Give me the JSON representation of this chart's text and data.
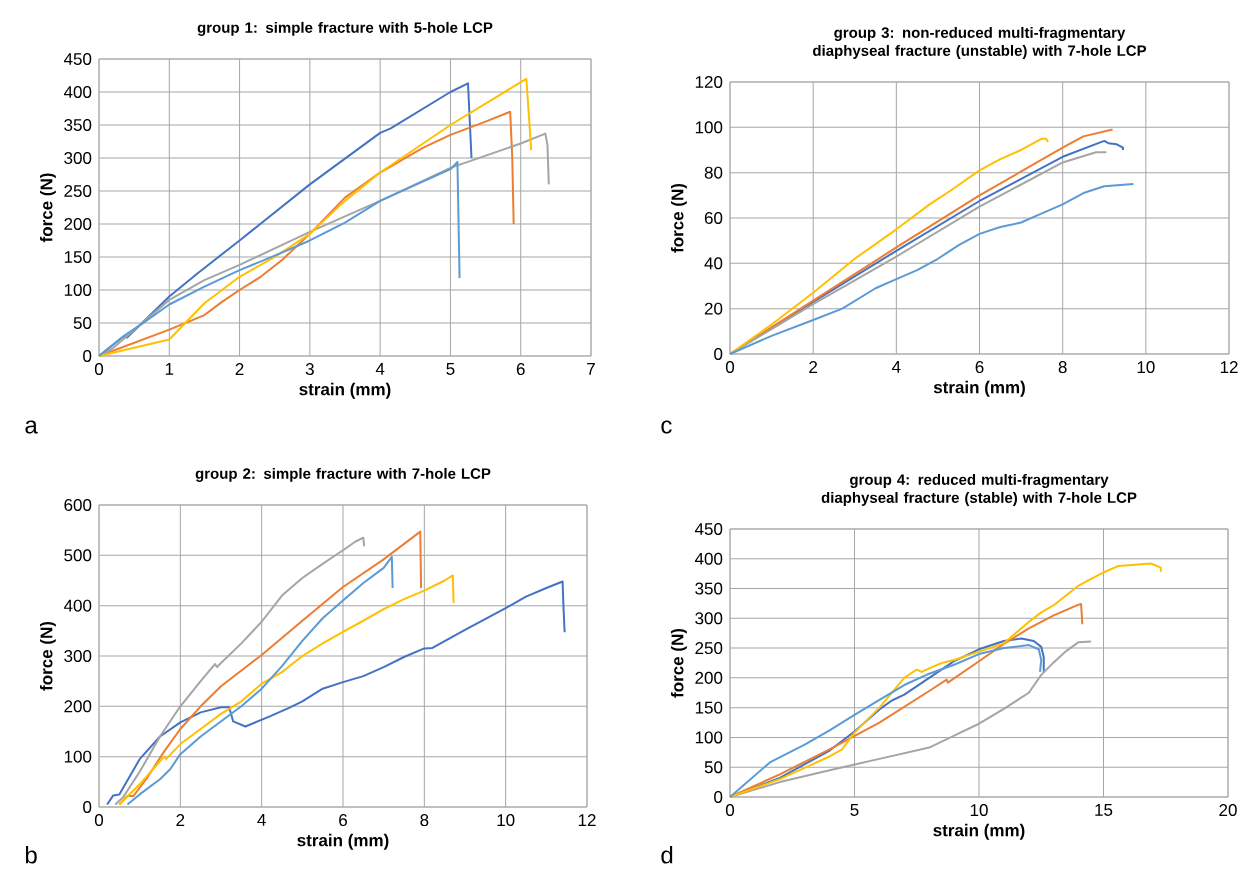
{
  "chart_data": [
    {
      "type": "line",
      "title": "group 1: simple fracture with 5-hole LCP",
      "xlabel": "strain (mm)",
      "ylabel": "force (N)",
      "xlim": [
        0,
        7
      ],
      "xticks": [
        0,
        1,
        2,
        3,
        4,
        5,
        6,
        7
      ],
      "ylim": [
        0,
        450
      ],
      "yticks": [
        0,
        50,
        100,
        150,
        200,
        250,
        300,
        350,
        400,
        450
      ],
      "grid": true,
      "annotations": [
        "a"
      ],
      "series": [
        {
          "color": "#4472c4",
          "x": [
            0,
            0.35,
            0.4,
            1,
            1.4,
            2,
            3,
            4,
            4.15,
            5,
            5.25,
            5.3
          ],
          "values": [
            0,
            30,
            28,
            90,
            125,
            175,
            260,
            338,
            345,
            400,
            413,
            300
          ]
        },
        {
          "color": "#ed7d31",
          "x": [
            0,
            1,
            1.5,
            1.75,
            2,
            2.3,
            2.6,
            3,
            3.5,
            4,
            4.6,
            5,
            5.5,
            5.85,
            5.88,
            5.9
          ],
          "values": [
            0,
            40,
            62,
            82,
            100,
            120,
            145,
            185,
            240,
            278,
            315,
            335,
            355,
            370,
            300,
            200
          ]
        },
        {
          "color": "#a5a5a5",
          "x": [
            0,
            0.2,
            1,
            1.5,
            2,
            3,
            4,
            5,
            6,
            6.35,
            6.38,
            6.4
          ],
          "values": [
            0,
            12,
            85,
            115,
            138,
            188,
            235,
            285,
            322,
            337,
            320,
            260
          ]
        },
        {
          "color": "#ffc000",
          "x": [
            0,
            1,
            1.5,
            2,
            2.5,
            3,
            3.5,
            4,
            5,
            6.08,
            6.15
          ],
          "values": [
            0,
            25,
            80,
            120,
            150,
            185,
            235,
            278,
            350,
            420,
            312
          ]
        },
        {
          "color": "#5b9bd5",
          "x": [
            0,
            0.35,
            0.6,
            1,
            1.5,
            2,
            2.5,
            3,
            3.5,
            4,
            5,
            5.1,
            5.13
          ],
          "values": [
            0,
            30,
            48,
            78,
            105,
            130,
            152,
            175,
            202,
            235,
            283,
            294,
            118
          ]
        }
      ]
    },
    {
      "type": "line",
      "title": "group 3: non-reduced multi-fragmentary diaphyseal fracture (unstable) with 7-hole LCP",
      "xlabel": "strain (mm)",
      "ylabel": "force (N)",
      "xlim": [
        0,
        12
      ],
      "xticks": [
        0,
        2,
        4,
        6,
        8,
        10,
        12
      ],
      "ylim": [
        0,
        120
      ],
      "yticks": [
        0,
        20,
        40,
        60,
        80,
        100,
        120
      ],
      "grid": true,
      "annotations": [
        "c"
      ],
      "series": [
        {
          "color": "#4472c4",
          "x": [
            0,
            2,
            4,
            6,
            8,
            9,
            9.1,
            9.3,
            9.45,
            9.45
          ],
          "values": [
            0,
            23,
            45.5,
            67.5,
            87,
            94,
            93,
            92.5,
            91,
            90
          ]
        },
        {
          "color": "#ed7d31",
          "x": [
            0,
            2,
            4,
            6,
            8,
            8.5,
            9.2
          ],
          "values": [
            0,
            23.5,
            47,
            70,
            91,
            96,
            99
          ]
        },
        {
          "color": "#a5a5a5",
          "x": [
            0,
            2,
            4,
            6,
            8,
            8.8,
            9.05
          ],
          "values": [
            0,
            22,
            43,
            65,
            84.5,
            89,
            89
          ]
        },
        {
          "color": "#ffc000",
          "x": [
            0,
            1,
            2,
            3,
            4,
            4.8,
            5.3,
            6,
            6.5,
            7,
            7.5,
            7.6,
            7.65
          ],
          "values": [
            0,
            13,
            27,
            42,
            55,
            66,
            72,
            81,
            86,
            90,
            95,
            95,
            93.5
          ]
        },
        {
          "color": "#5b9bd5",
          "x": [
            0,
            1,
            2,
            2.7,
            3.5,
            4,
            4.5,
            5,
            5.5,
            6,
            6.5,
            7,
            7.5,
            8,
            8.5,
            9,
            9.7
          ],
          "values": [
            0,
            8,
            15,
            20,
            29,
            33,
            37,
            42,
            48,
            53,
            56,
            58,
            62,
            66,
            71,
            74,
            75
          ]
        }
      ]
    },
    {
      "type": "line",
      "title": "group 2: simple fracture with 7-hole LCP",
      "xlabel": "strain (mm)",
      "ylabel": "force (N)",
      "xlim": [
        0,
        12
      ],
      "xticks": [
        0,
        2,
        4,
        6,
        8,
        10,
        12
      ],
      "ylim": [
        0,
        600
      ],
      "yticks": [
        0,
        100,
        200,
        300,
        400,
        500,
        600
      ],
      "grid": true,
      "annotations": [
        "b"
      ],
      "series": [
        {
          "color": "#4472c4",
          "x": [
            0.2,
            0.35,
            0.5,
            1,
            1.5,
            2,
            2.5,
            3,
            3.2,
            3.3,
            3.6,
            4.2,
            4.7,
            5,
            5.5,
            6,
            6.5,
            7,
            7.5,
            8,
            8.2,
            9,
            10,
            10.5,
            11,
            11.4,
            11.42,
            11.45
          ],
          "values": [
            5,
            23,
            25,
            95,
            140,
            168,
            188,
            198,
            198,
            170,
            160,
            180,
            198,
            210,
            235,
            248,
            260,
            278,
            298,
            315,
            316,
            352,
            395,
            418,
            435,
            448,
            400,
            347
          ]
        },
        {
          "color": "#ed7d31",
          "x": [
            0.5,
            0.7,
            0.85,
            1.2,
            1.6,
            2,
            2.5,
            3,
            4,
            5,
            6,
            7,
            7.9,
            7.92
          ],
          "values": [
            5,
            22,
            22,
            60,
            110,
            155,
            200,
            240,
            302,
            370,
            437,
            492,
            547,
            435
          ]
        },
        {
          "color": "#a5a5a5",
          "x": [
            0.4,
            0.6,
            1,
            1.5,
            2,
            2.5,
            2.85,
            2.9,
            3.5,
            4,
            4.5,
            5,
            5.5,
            6,
            6.3,
            6.5,
            6.52
          ],
          "values": [
            5,
            20,
            70,
            140,
            200,
            250,
            284,
            278,
            325,
            368,
            420,
            455,
            483,
            510,
            527,
            535,
            518
          ]
        },
        {
          "color": "#ffc000",
          "x": [
            0.5,
            1,
            1.6,
            1.65,
            2,
            2.5,
            3,
            3.5,
            4,
            4.5,
            5,
            5.5,
            6,
            6.5,
            7,
            7.5,
            8,
            8.5,
            8.7,
            8.72
          ],
          "values": [
            5,
            45,
            100,
            95,
            125,
            155,
            185,
            210,
            245,
            268,
            300,
            325,
            348,
            370,
            393,
            413,
            430,
            450,
            460,
            405
          ]
        },
        {
          "color": "#5b9bd5",
          "x": [
            0.7,
            1,
            1.5,
            1.75,
            2,
            2.5,
            3,
            3.5,
            4,
            4.5,
            5,
            5.5,
            6,
            6.5,
            7,
            7.2,
            7.22
          ],
          "values": [
            5,
            25,
            55,
            75,
            105,
            140,
            170,
            200,
            235,
            280,
            330,
            375,
            410,
            445,
            475,
            497,
            435
          ]
        }
      ]
    },
    {
      "type": "line",
      "title": "group 4: reduced multi-fragmentary diaphyseal fracture (stable) with 7-hole LCP",
      "xlabel": "strain (mm)",
      "ylabel": "force (N)",
      "xlim": [
        0,
        20
      ],
      "xticks": [
        0,
        5,
        10,
        15,
        20
      ],
      "ylim": [
        0,
        450
      ],
      "yticks": [
        0,
        50,
        100,
        150,
        200,
        250,
        300,
        350,
        400,
        450
      ],
      "grid": true,
      "annotations": [
        "d"
      ],
      "series": [
        {
          "color": "#4472c4",
          "x": [
            0,
            2,
            4,
            5,
            6,
            6.5,
            7,
            8,
            9,
            10,
            11,
            11.7,
            12.2,
            12.5,
            12.6,
            12.6
          ],
          "values": [
            0,
            32,
            78,
            110,
            147,
            162,
            172,
            200,
            228,
            248,
            262,
            266,
            262,
            252,
            235,
            210
          ]
        },
        {
          "color": "#ed7d31",
          "x": [
            0,
            2,
            4,
            6,
            8,
            8.7,
            8.75,
            10,
            11,
            12,
            13,
            14,
            14.1,
            14.15
          ],
          "values": [
            0,
            38,
            80,
            125,
            178,
            197,
            192,
            228,
            257,
            283,
            305,
            323,
            324,
            290
          ]
        },
        {
          "color": "#a5a5a5",
          "x": [
            0,
            2,
            4,
            6,
            8,
            9,
            10,
            11,
            12,
            12.5,
            13,
            13.5,
            14,
            14.5
          ],
          "values": [
            0,
            25,
            45,
            64,
            83,
            103,
            123,
            148,
            175,
            205,
            226,
            245,
            260,
            261
          ]
        },
        {
          "color": "#ffc000",
          "x": [
            0,
            2,
            4,
            4.5,
            5,
            6,
            7,
            7.5,
            7.7,
            8,
            8.5,
            9,
            10,
            11,
            12,
            12.5,
            13,
            14,
            15,
            15.6,
            16.9,
            17.3,
            17.3
          ],
          "values": [
            0,
            30,
            68,
            80,
            108,
            150,
            200,
            214,
            210,
            216,
            225,
            230,
            244,
            258,
            294,
            310,
            322,
            355,
            377,
            388,
            392,
            385,
            378
          ]
        },
        {
          "color": "#5b9bd5",
          "x": [
            0,
            1.6,
            3,
            4,
            5,
            6,
            7,
            8,
            9,
            10,
            11,
            12,
            12.4,
            12.5,
            12.45
          ],
          "values": [
            0,
            58,
            88,
            112,
            138,
            163,
            188,
            207,
            222,
            240,
            250,
            255,
            248,
            230,
            210
          ]
        }
      ]
    }
  ]
}
